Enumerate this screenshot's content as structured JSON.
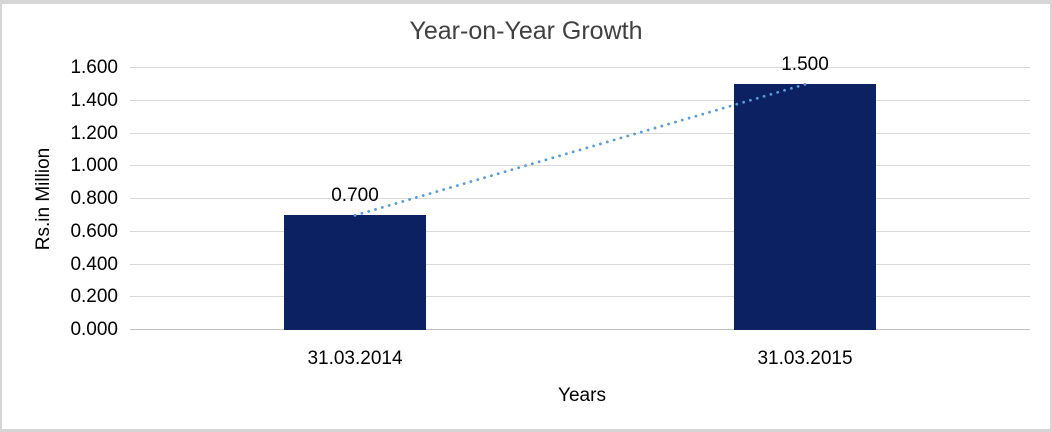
{
  "chart_data": {
    "type": "bar",
    "title": "Year-on-Year Growth",
    "xlabel": "Years",
    "ylabel": "Rs.in Million",
    "categories": [
      "31.03.2014",
      "31.03.2015"
    ],
    "values": [
      0.7,
      1.5
    ],
    "data_labels": [
      "0.700",
      "1.500"
    ],
    "y_ticks": [
      "0.000",
      "0.200",
      "0.400",
      "0.600",
      "0.800",
      "1.000",
      "1.200",
      "1.400",
      "1.600"
    ],
    "ylim": [
      0,
      1.6
    ],
    "grid": true,
    "legend_position": "none",
    "trendline": {
      "type": "linear",
      "style": "dotted",
      "connects": [
        "31.03.2014",
        "31.03.2015"
      ]
    }
  },
  "colors": {
    "bar_fill": "#0B2161",
    "trendline": "#5B9BD5",
    "gridline": "#D9D9D9",
    "axis_line": "#BFBFBF",
    "frame_border": "#D6D6D6",
    "title_text": "#404040",
    "axis_text": "#000000",
    "background": "#FFFFFF"
  }
}
